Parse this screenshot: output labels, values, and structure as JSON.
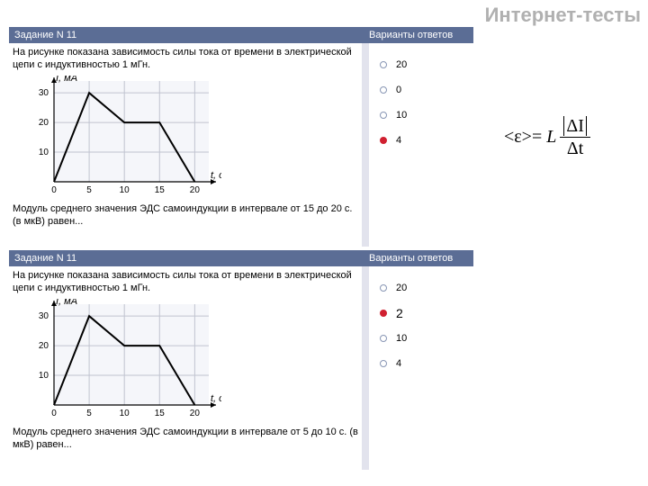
{
  "page_title": "Интернет-тесты",
  "formula": {
    "lhs": "<ε>=",
    "coef": "L",
    "num_abs": "ΔI",
    "den": "Δt"
  },
  "blocks": [
    {
      "header_left": "Задание N 11",
      "header_right": "Варианты ответов",
      "task_text": "На рисунке показана зависимость силы тока от времени в электрической цепи с индуктивностью 1 мГн.",
      "after_text": "Модуль среднего значения ЭДС самоиндукции в интервале от 15 до 20 с. (в мкВ) равен...",
      "answers": [
        {
          "label": "20",
          "selected": false
        },
        {
          "label": "0",
          "selected": false
        },
        {
          "label": "10",
          "selected": false
        },
        {
          "label": "4",
          "selected": true
        }
      ]
    },
    {
      "header_left": "Задание N 11",
      "header_right": "Варианты ответов",
      "task_text": "На рисунке показана зависимость силы тока от времени в электрической цепи с индуктивностью 1 мГн.",
      "after_text": "Модуль среднего значения ЭДС самоиндукции в интервале от 5 до 10 с. (в мкВ) равен...",
      "answers": [
        {
          "label": "20",
          "selected": false
        },
        {
          "label": "2",
          "selected": true
        },
        {
          "label": "10",
          "selected": false
        },
        {
          "label": "4",
          "selected": false
        }
      ]
    }
  ],
  "chart": {
    "type": "line",
    "y_axis_label": "I, мА",
    "x_axis_label": "t, с",
    "x_ticks": [
      0,
      5,
      10,
      15,
      20
    ],
    "y_ticks": [
      10,
      20,
      30
    ],
    "xlim": [
      0,
      22
    ],
    "ylim": [
      0,
      34
    ],
    "points": [
      [
        0,
        0
      ],
      [
        5,
        30
      ],
      [
        10,
        20
      ],
      [
        15,
        20
      ],
      [
        20,
        0
      ]
    ],
    "colors": {
      "background": "#f5f6fa",
      "grid": "#c0c3cf",
      "axis": "#000000",
      "line": "#000000",
      "tick_text": "#000000"
    },
    "line_width": 2,
    "tick_fontsize": 10
  }
}
